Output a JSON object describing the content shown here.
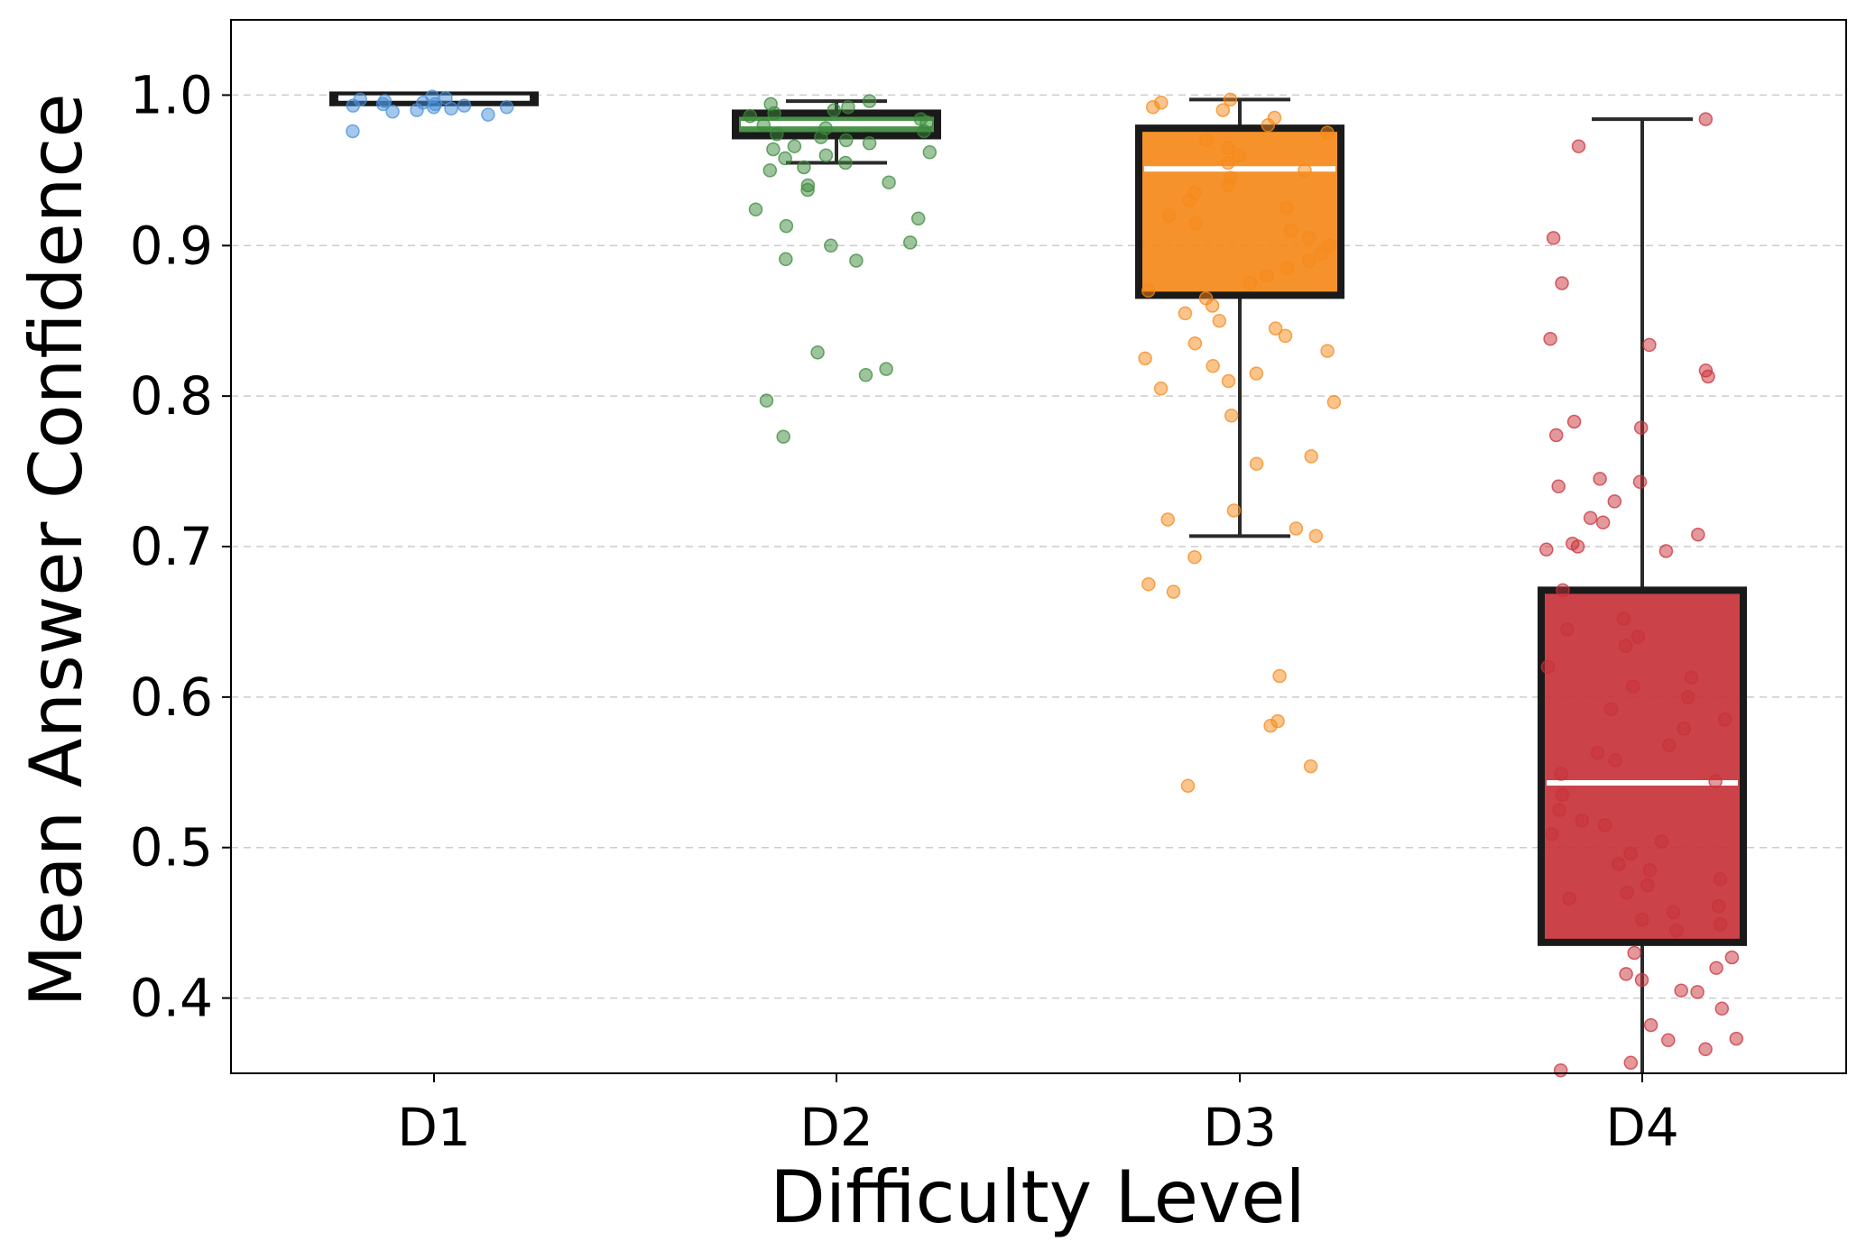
{
  "chart_data": {
    "type": "boxplot",
    "xlabel": "Difficulty Level",
    "ylabel": "Mean Answer Confidence",
    "ylim": [
      0.35,
      1.05
    ],
    "yticks": [
      "0.4",
      "0.5",
      "0.6",
      "0.7",
      "0.8",
      "0.9",
      "1.0"
    ],
    "grid": "horizontal dashed",
    "categories": [
      "D1",
      "D2",
      "D3",
      "D4"
    ],
    "series": [
      {
        "name": "D1",
        "color": "#4a90d9",
        "box": {
          "q1": 0.995,
          "median": 0.998,
          "q3": 1.0,
          "whisker_low": 0.994,
          "whisker_high": 1.0
        },
        "points": [
          0.999,
          0.998,
          0.997,
          0.996,
          0.995,
          0.994,
          0.993,
          0.992,
          0.991,
          0.99,
          0.989,
          0.987,
          0.993,
          0.976,
          0.992,
          0.994
        ]
      },
      {
        "name": "D2",
        "color": "#3b8a3b",
        "box": {
          "q1": 0.973,
          "median": 0.981,
          "q3": 0.988,
          "whisker_low": 0.955,
          "whisker_high": 0.996
        },
        "points": [
          0.996,
          0.994,
          0.992,
          0.99,
          0.988,
          0.986,
          0.984,
          0.982,
          0.98,
          0.978,
          0.976,
          0.974,
          0.972,
          0.97,
          0.968,
          0.966,
          0.964,
          0.962,
          0.96,
          0.958,
          0.955,
          0.952,
          0.95,
          0.942,
          0.94,
          0.937,
          0.924,
          0.918,
          0.913,
          0.902,
          0.9,
          0.891,
          0.89,
          0.829,
          0.818,
          0.814,
          0.797,
          0.773
        ]
      },
      {
        "name": "D3",
        "color": "#f5891a",
        "box": {
          "q1": 0.867,
          "median": 0.951,
          "q3": 0.978,
          "whisker_low": 0.707,
          "whisker_high": 0.997
        },
        "points": [
          0.997,
          0.995,
          0.992,
          0.99,
          0.985,
          0.98,
          0.975,
          0.97,
          0.965,
          0.96,
          0.955,
          0.95,
          0.945,
          0.94,
          0.935,
          0.93,
          0.925,
          0.92,
          0.915,
          0.91,
          0.905,
          0.9,
          0.895,
          0.89,
          0.885,
          0.88,
          0.875,
          0.87,
          0.865,
          0.86,
          0.855,
          0.85,
          0.845,
          0.84,
          0.835,
          0.83,
          0.825,
          0.82,
          0.815,
          0.81,
          0.805,
          0.796,
          0.787,
          0.76,
          0.755,
          0.724,
          0.718,
          0.712,
          0.707,
          0.693,
          0.675,
          0.67,
          0.614,
          0.584,
          0.581,
          0.554,
          0.541
        ]
      },
      {
        "name": "D4",
        "color": "#c8323a",
        "box": {
          "q1": 0.437,
          "median": 0.543,
          "q3": 0.671,
          "whisker_low": 0.35,
          "whisker_high": 0.984
        },
        "points": [
          0.984,
          0.966,
          0.905,
          0.875,
          0.838,
          0.834,
          0.817,
          0.813,
          0.783,
          0.779,
          0.774,
          0.745,
          0.743,
          0.74,
          0.73,
          0.719,
          0.716,
          0.708,
          0.702,
          0.7,
          0.698,
          0.697,
          0.671,
          0.652,
          0.645,
          0.64,
          0.634,
          0.62,
          0.613,
          0.607,
          0.6,
          0.592,
          0.585,
          0.579,
          0.568,
          0.563,
          0.558,
          0.549,
          0.544,
          0.535,
          0.525,
          0.518,
          0.515,
          0.509,
          0.504,
          0.496,
          0.489,
          0.485,
          0.479,
          0.475,
          0.47,
          0.466,
          0.461,
          0.457,
          0.452,
          0.449,
          0.445,
          0.43,
          0.427,
          0.42,
          0.416,
          0.412,
          0.405,
          0.404,
          0.393,
          0.382,
          0.373,
          0.372,
          0.366,
          0.357,
          0.352
        ]
      }
    ]
  }
}
